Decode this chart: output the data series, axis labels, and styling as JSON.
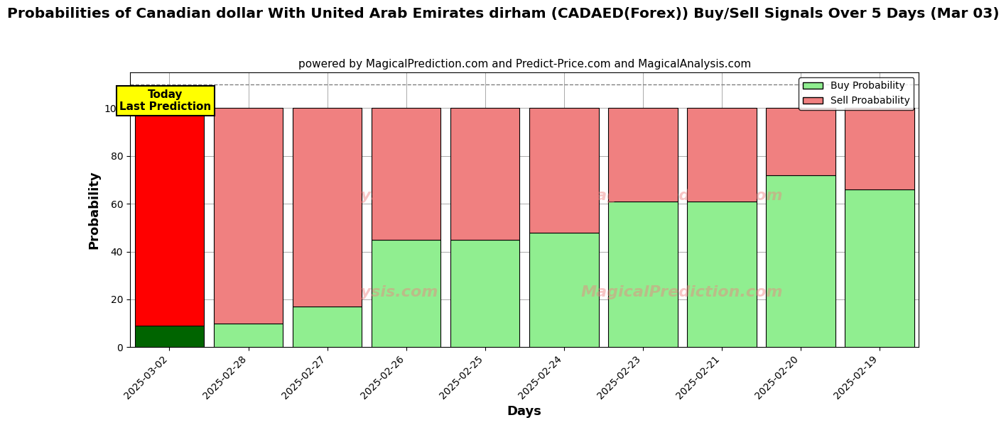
{
  "title": "Probabilities of Canadian dollar With United Arab Emirates dirham (CADAED(Forex)) Buy/Sell Signals Over 5 Days (Mar 03)",
  "subtitle": "powered by MagicalPrediction.com and Predict-Price.com and MagicalAnalysis.com",
  "xlabel": "Days",
  "ylabel": "Probability",
  "categories": [
    "2025-03-02",
    "2025-02-28",
    "2025-02-27",
    "2025-02-26",
    "2025-02-25",
    "2025-02-24",
    "2025-02-23",
    "2025-02-21",
    "2025-02-20",
    "2025-02-19"
  ],
  "buy_values": [
    9,
    10,
    17,
    45,
    45,
    48,
    61,
    61,
    72,
    66
  ],
  "sell_values": [
    91,
    90,
    83,
    55,
    55,
    52,
    39,
    39,
    28,
    34
  ],
  "buy_color_first": "#006400",
  "buy_color_rest": "#90EE90",
  "sell_color_first": "#FF0000",
  "sell_color_rest": "#F08080",
  "bar_edge_color": "#000000",
  "bar_width": 0.88,
  "ylim": [
    0,
    115
  ],
  "yticks": [
    0,
    20,
    40,
    60,
    80,
    100
  ],
  "dashed_line_y": 110,
  "today_box_text": "Today\nLast Prediction",
  "today_box_facecolor": "#FFFF00",
  "today_box_edgecolor": "#000000",
  "legend_buy_label": "Buy Probability",
  "legend_sell_label": "Sell Proabability",
  "watermark_lines": [
    "calAnalysis.com   MagicalPrediction.com",
    "calAnalysis.com   MagicalPrediction.com"
  ],
  "watermark_color": "#F08080",
  "watermark_alpha": 0.45,
  "bg_color": "#ffffff",
  "grid_color": "#aaaaaa",
  "title_fontsize": 14.5,
  "subtitle_fontsize": 11,
  "axis_label_fontsize": 13,
  "tick_fontsize": 10
}
